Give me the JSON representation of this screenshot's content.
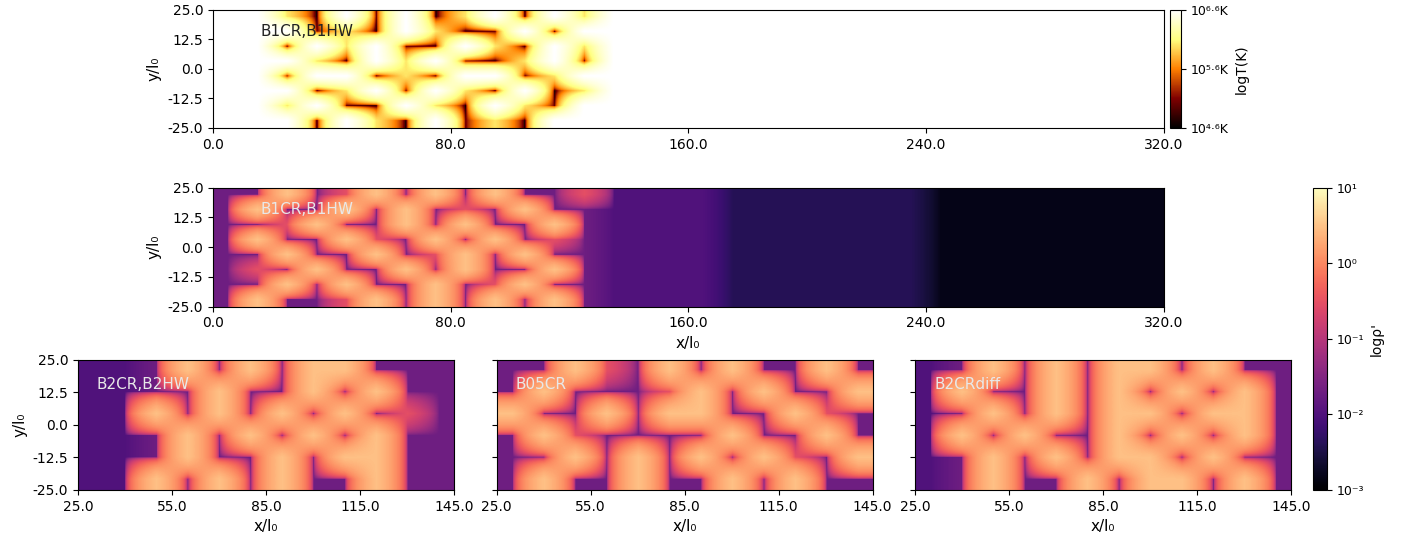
{
  "chart_data": [
    {
      "type": "heatmap",
      "label": "B1CR,B1HW",
      "ylabel": "y/l₀",
      "color": "afmhot",
      "xlim": [
        0,
        320
      ],
      "ylim": [
        -25,
        25
      ],
      "xticks": [
        {
          "value": 0,
          "label": "0.0"
        },
        {
          "value": 80,
          "label": "80.0"
        },
        {
          "value": 160,
          "label": "160.0"
        },
        {
          "value": 240,
          "label": "240.0"
        },
        {
          "value": 320,
          "label": "320.0"
        }
      ],
      "yticks": [
        {
          "value": -25,
          "label": "-25.0"
        },
        {
          "value": -12.5,
          "label": "-12.5"
        },
        {
          "value": 0,
          "label": "0.0"
        },
        {
          "value": 12.5,
          "label": "12.5"
        },
        {
          "value": 25,
          "label": "25.0"
        }
      ],
      "color_range": [
        39810.7,
        3981071.7
      ],
      "colorbar": {
        "label": "logT(K)",
        "ticks": [
          {
            "value": 3981071.7,
            "label": "10⁶·⁶K"
          },
          {
            "value": 398107.2,
            "label": "10⁵·⁶K"
          },
          {
            "value": 39810.7,
            "label": "10⁴·⁶K"
          }
        ]
      },
      "cells": [
        [
          4000000.0,
          4000000.0,
          1000000.0,
          40000.0,
          4000000.0,
          100000.0,
          4000000.0,
          40000.0,
          1000000.0,
          4000000.0,
          40000.0,
          4000000.0,
          1000000.0,
          4000000.0,
          4000000.0,
          4000000.0,
          4000000.0,
          4000000.0,
          4000000.0,
          4000000.0,
          4000000.0,
          4000000.0,
          4000000.0,
          4000000.0,
          4000000.0,
          4000000.0,
          4000000.0,
          4000000.0,
          4000000.0,
          4000000.0,
          4000000.0,
          4000000.0
        ],
        [
          4000000.0,
          4000000.0,
          4000000.0,
          100000.0,
          1000000.0,
          40000.0,
          4000000.0,
          1000000.0,
          40000.0,
          100000.0,
          4000000.0,
          40000.0,
          4000000.0,
          4000000.0,
          4000000.0,
          4000000.0,
          4000000.0,
          4000000.0,
          4000000.0,
          4000000.0,
          4000000.0,
          4000000.0,
          4000000.0,
          4000000.0,
          4000000.0,
          4000000.0,
          4000000.0,
          4000000.0,
          4000000.0,
          4000000.0,
          4000000.0,
          4000000.0
        ],
        [
          4000000.0,
          4000000.0,
          40000.0,
          4000000.0,
          1000000.0,
          4000000.0,
          100000.0,
          40000.0,
          4000000.0,
          1000000.0,
          40000.0,
          4000000.0,
          1000000.0,
          4000000.0,
          4000000.0,
          4000000.0,
          4000000.0,
          4000000.0,
          4000000.0,
          4000000.0,
          4000000.0,
          4000000.0,
          4000000.0,
          4000000.0,
          4000000.0,
          4000000.0,
          4000000.0,
          4000000.0,
          4000000.0,
          4000000.0,
          4000000.0,
          4000000.0
        ],
        [
          4000000.0,
          4000000.0,
          4000000.0,
          1000000.0,
          40000.0,
          4000000.0,
          1000000.0,
          4000000.0,
          100000.0,
          40000.0,
          1000000.0,
          4000000.0,
          100000.0,
          4000000.0,
          4000000.0,
          4000000.0,
          4000000.0,
          4000000.0,
          4000000.0,
          4000000.0,
          4000000.0,
          4000000.0,
          4000000.0,
          4000000.0,
          4000000.0,
          4000000.0,
          4000000.0,
          4000000.0,
          4000000.0,
          4000000.0,
          4000000.0,
          4000000.0
        ],
        [
          4000000.0,
          4000000.0,
          100000.0,
          4000000.0,
          4000000.0,
          40000.0,
          1000000.0,
          40000.0,
          4000000.0,
          4000000.0,
          100000.0,
          1000000.0,
          4000000.0,
          4000000.0,
          4000000.0,
          4000000.0,
          4000000.0,
          4000000.0,
          4000000.0,
          4000000.0,
          4000000.0,
          4000000.0,
          4000000.0,
          4000000.0,
          4000000.0,
          4000000.0,
          4000000.0,
          4000000.0,
          4000000.0,
          4000000.0,
          4000000.0,
          4000000.0
        ],
        [
          4000000.0,
          4000000.0,
          4000000.0,
          40000.0,
          1000000.0,
          4000000.0,
          100000.0,
          4000000.0,
          1000000.0,
          40000.0,
          4000000.0,
          40000.0,
          1000000.0,
          4000000.0,
          4000000.0,
          4000000.0,
          4000000.0,
          4000000.0,
          4000000.0,
          4000000.0,
          4000000.0,
          4000000.0,
          4000000.0,
          4000000.0,
          4000000.0,
          4000000.0,
          4000000.0,
          4000000.0,
          4000000.0,
          4000000.0,
          4000000.0,
          4000000.0
        ],
        [
          4000000.0,
          4000000.0,
          1000000.0,
          4000000.0,
          100000.0,
          40000.0,
          4000000.0,
          1000000.0,
          40000.0,
          4000000.0,
          1000000.0,
          100000.0,
          4000000.0,
          4000000.0,
          4000000.0,
          4000000.0,
          4000000.0,
          4000000.0,
          4000000.0,
          4000000.0,
          4000000.0,
          4000000.0,
          4000000.0,
          4000000.0,
          4000000.0,
          4000000.0,
          4000000.0,
          4000000.0,
          4000000.0,
          4000000.0,
          4000000.0,
          4000000.0
        ],
        [
          4000000.0,
          4000000.0,
          4000000.0,
          40000.0,
          4000000.0,
          1000000.0,
          40000.0,
          4000000.0,
          100000.0,
          1000000.0,
          40000.0,
          4000000.0,
          4000000.0,
          4000000.0,
          4000000.0,
          4000000.0,
          4000000.0,
          4000000.0,
          4000000.0,
          4000000.0,
          4000000.0,
          4000000.0,
          4000000.0,
          4000000.0,
          4000000.0,
          4000000.0,
          4000000.0,
          4000000.0,
          4000000.0,
          4000000.0,
          4000000.0,
          4000000.0
        ]
      ]
    },
    {
      "type": "heatmap",
      "label": "B1CR,B1HW",
      "xlabel": "x/l₀",
      "ylabel": "y/l₀",
      "color": "magma",
      "xlim": [
        0,
        320
      ],
      "ylim": [
        -25,
        25
      ],
      "xticks": [
        {
          "value": 0,
          "label": "0.0"
        },
        {
          "value": 80,
          "label": "80.0"
        },
        {
          "value": 160,
          "label": "160.0"
        },
        {
          "value": 240,
          "label": "240.0"
        },
        {
          "value": 320,
          "label": "320.0"
        }
      ],
      "yticks": [
        {
          "value": -25,
          "label": "-25.0"
        },
        {
          "value": -12.5,
          "label": "-12.5"
        },
        {
          "value": 0,
          "label": "0.0"
        },
        {
          "value": 12.5,
          "label": "12.5"
        },
        {
          "value": 25,
          "label": "25.0"
        }
      ],
      "color_range": [
        0.001,
        10
      ],
      "colorbar": {
        "label": "logρ'",
        "ticks": [
          {
            "value": 10,
            "label": "10¹"
          },
          {
            "value": 1,
            "label": "10⁰"
          },
          {
            "value": 0.1,
            "label": "10⁻¹"
          },
          {
            "value": 0.01,
            "label": "10⁻²"
          },
          {
            "value": 0.001,
            "label": "10⁻³"
          }
        ]
      },
      "cells": [
        [
          0.02,
          0.02,
          3,
          0.02,
          0.3,
          3,
          0.02,
          3,
          0.02,
          3,
          0.02,
          0.02,
          0.3,
          0.01,
          0.01,
          0.01,
          0.01,
          0.004,
          0.004,
          0.004,
          0.004,
          0.004,
          0.004,
          0.004,
          0.0015,
          0.0015,
          0.0015,
          0.0015,
          0.0015,
          0.0015,
          0.0015,
          0.0015
        ],
        [
          0.02,
          3,
          0.02,
          0.02,
          3,
          0.02,
          3,
          0.02,
          0.3,
          0.02,
          3,
          0.02,
          0.02,
          0.01,
          0.01,
          0.01,
          0.01,
          0.004,
          0.004,
          0.004,
          0.004,
          0.004,
          0.004,
          0.004,
          0.0015,
          0.0015,
          0.0015,
          0.0015,
          0.0015,
          0.0015,
          0.0015,
          0.0015
        ],
        [
          0.02,
          0.02,
          0.3,
          3,
          0.02,
          0.02,
          3,
          0.02,
          3,
          0.02,
          0.02,
          3,
          0.02,
          0.01,
          0.01,
          0.01,
          0.01,
          0.004,
          0.004,
          0.004,
          0.004,
          0.004,
          0.004,
          0.004,
          0.0015,
          0.0015,
          0.0015,
          0.0015,
          0.0015,
          0.0015,
          0.0015,
          0.0015
        ],
        [
          0.02,
          3,
          0.02,
          0.02,
          3,
          0.3,
          0.02,
          3,
          0.02,
          3,
          0.02,
          0.3,
          0.02,
          0.01,
          0.01,
          0.01,
          0.01,
          0.004,
          0.004,
          0.004,
          0.004,
          0.004,
          0.004,
          0.004,
          0.0015,
          0.0015,
          0.0015,
          0.0015,
          0.0015,
          0.0015,
          0.0015,
          0.0015
        ],
        [
          0.02,
          0.02,
          3,
          0.02,
          0.02,
          3,
          0.02,
          0.3,
          3,
          0.02,
          3,
          0.02,
          0.02,
          0.01,
          0.01,
          0.01,
          0.01,
          0.004,
          0.004,
          0.004,
          0.004,
          0.004,
          0.004,
          0.004,
          0.0015,
          0.0015,
          0.0015,
          0.0015,
          0.0015,
          0.0015,
          0.0015,
          0.0015
        ],
        [
          0.02,
          0.3,
          0.02,
          3,
          0.02,
          0.02,
          3,
          0.02,
          3,
          0.02,
          0.02,
          3,
          0.02,
          0.01,
          0.01,
          0.01,
          0.01,
          0.004,
          0.004,
          0.004,
          0.004,
          0.004,
          0.004,
          0.004,
          0.0015,
          0.0015,
          0.0015,
          0.0015,
          0.0015,
          0.0015,
          0.0015,
          0.0015
        ],
        [
          0.02,
          0.02,
          3,
          0.02,
          3,
          0.02,
          0.02,
          3,
          0.02,
          0.3,
          3,
          0.02,
          0.02,
          0.01,
          0.01,
          0.01,
          0.01,
          0.004,
          0.004,
          0.004,
          0.004,
          0.004,
          0.004,
          0.004,
          0.0015,
          0.0015,
          0.0015,
          0.0015,
          0.0015,
          0.0015,
          0.0015,
          0.0015
        ],
        [
          0.02,
          3,
          0.02,
          0.02,
          0.3,
          3,
          0.02,
          3,
          0.02,
          3,
          0.02,
          3,
          0.02,
          0.01,
          0.01,
          0.01,
          0.01,
          0.004,
          0.004,
          0.004,
          0.004,
          0.004,
          0.004,
          0.004,
          0.0015,
          0.0015,
          0.0015,
          0.0015,
          0.0015,
          0.0015,
          0.0015,
          0.0015
        ]
      ]
    },
    {
      "type": "heatmap",
      "label": "B2CR,B2HW",
      "xlabel": "x/l₀",
      "ylabel": "y/l₀",
      "color": "magma",
      "xlim": [
        25,
        145
      ],
      "ylim": [
        -25,
        25
      ],
      "xticks": [
        {
          "value": 25,
          "label": "25.0"
        },
        {
          "value": 55,
          "label": "55.0"
        },
        {
          "value": 85,
          "label": "85.0"
        },
        {
          "value": 115,
          "label": "115.0"
        },
        {
          "value": 145,
          "label": "145.0"
        }
      ],
      "yticks": [
        {
          "value": -25,
          "label": "-25.0"
        },
        {
          "value": -12.5,
          "label": "-12.5"
        },
        {
          "value": 0,
          "label": "0.0"
        },
        {
          "value": 12.5,
          "label": "12.5"
        },
        {
          "value": 25,
          "label": "25.0"
        }
      ],
      "color_range": [
        0.001,
        10
      ],
      "cells": [
        [
          0.01,
          0.01,
          0.02,
          3,
          0.02,
          3,
          0.02,
          3,
          3,
          0.02,
          0.02,
          0.02
        ],
        [
          0.01,
          0.01,
          0.02,
          0.02,
          3,
          0.02,
          0.02,
          3,
          0.02,
          3,
          0.02,
          0.02
        ],
        [
          0.01,
          0.01,
          3,
          0.02,
          3,
          0.02,
          3,
          0.02,
          3,
          0.02,
          0.3,
          0.02
        ],
        [
          0.01,
          0.01,
          0.02,
          3,
          0.02,
          3,
          0.02,
          3,
          0.02,
          3,
          0.02,
          0.02
        ],
        [
          0.01,
          0.01,
          0.02,
          3,
          0.02,
          0.02,
          3,
          0.02,
          3,
          3,
          0.02,
          0.02
        ],
        [
          0.01,
          0.01,
          3,
          0.02,
          3,
          0.02,
          3,
          0.02,
          0.02,
          3,
          0.02,
          0.02
        ]
      ]
    },
    {
      "type": "heatmap",
      "label": "B05CR",
      "xlabel": "x/l₀",
      "color": "magma",
      "xlim": [
        25,
        145
      ],
      "ylim": [
        -25,
        25
      ],
      "xticks": [
        {
          "value": 25,
          "label": "25.0"
        },
        {
          "value": 55,
          "label": "55.0"
        },
        {
          "value": 85,
          "label": "85.0"
        },
        {
          "value": 115,
          "label": "115.0"
        },
        {
          "value": 145,
          "label": "145.0"
        }
      ],
      "yticks": [
        {
          "value": -25,
          "label": ""
        },
        {
          "value": -12.5,
          "label": ""
        },
        {
          "value": 0,
          "label": ""
        },
        {
          "value": 12.5,
          "label": ""
        },
        {
          "value": 25,
          "label": ""
        }
      ],
      "color_range": [
        0.001,
        10
      ],
      "cells": [
        [
          0.02,
          0.02,
          3,
          0.3,
          0.02,
          3,
          0.02,
          3,
          0.02,
          0.02,
          3,
          0.02
        ],
        [
          0.02,
          3,
          0.02,
          0.02,
          0.02,
          0.3,
          3,
          0.02,
          3,
          0.02,
          0.02,
          3
        ],
        [
          3,
          0.02,
          0.02,
          3,
          0.02,
          3,
          3,
          0.02,
          0.02,
          3,
          0.3,
          0.02
        ],
        [
          0.02,
          3,
          0.3,
          0.02,
          0.02,
          0.02,
          0.02,
          3,
          0.02,
          0.02,
          3,
          0.02
        ],
        [
          0.02,
          0.02,
          3,
          0.02,
          3,
          0.02,
          3,
          0.02,
          3,
          0.3,
          0.02,
          3
        ],
        [
          0.02,
          3,
          0.02,
          0.02,
          3,
          0.02,
          0.02,
          3,
          0.02,
          3,
          0.02,
          0.02
        ]
      ]
    },
    {
      "type": "heatmap",
      "label": "B2CRdiff",
      "xlabel": "x/l₀",
      "color": "magma",
      "xlim": [
        25,
        145
      ],
      "ylim": [
        -25,
        25
      ],
      "xticks": [
        {
          "value": 25,
          "label": "25.0"
        },
        {
          "value": 55,
          "label": "55.0"
        },
        {
          "value": 85,
          "label": "85.0"
        },
        {
          "value": 115,
          "label": "115.0"
        },
        {
          "value": 145,
          "label": "145.0"
        }
      ],
      "yticks": [
        {
          "value": -25,
          "label": ""
        },
        {
          "value": -12.5,
          "label": ""
        },
        {
          "value": 0,
          "label": ""
        },
        {
          "value": 12.5,
          "label": ""
        },
        {
          "value": 25,
          "label": ""
        }
      ],
      "color_range": [
        0.001,
        10
      ],
      "cells": [
        [
          0.01,
          0.02,
          3,
          0.02,
          3,
          0.02,
          3,
          3,
          0.02,
          3,
          0.02,
          0.02
        ],
        [
          0.01,
          3,
          0.02,
          0.02,
          3,
          0.02,
          3,
          0.02,
          3,
          0.02,
          3,
          0.02
        ],
        [
          0.01,
          0.02,
          3,
          0.02,
          3,
          0.02,
          3,
          3,
          0.02,
          3,
          3,
          0.02
        ],
        [
          0.01,
          3,
          0.02,
          3,
          0.02,
          0.02,
          3,
          0.02,
          3,
          0.02,
          3,
          0.02
        ],
        [
          0.01,
          0.02,
          3,
          0.02,
          3,
          0.02,
          3,
          3,
          0.02,
          3,
          0.02,
          0.02
        ],
        [
          0.01,
          0.02,
          3,
          0.02,
          0.02,
          3,
          0.02,
          3,
          3,
          0.02,
          3,
          0.02
        ]
      ]
    }
  ]
}
